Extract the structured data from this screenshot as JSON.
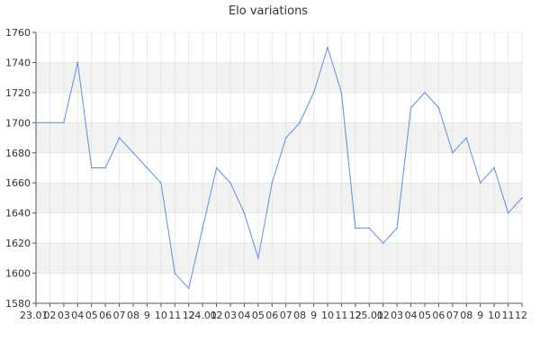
{
  "chart_data": {
    "type": "line",
    "title": "Elo variations",
    "xlabel": "",
    "ylabel": "",
    "ylim": [
      1580,
      1760
    ],
    "yticks": [
      1580,
      1600,
      1620,
      1640,
      1660,
      1680,
      1700,
      1720,
      1740,
      1760
    ],
    "grid": true,
    "colors": {
      "line": "#5b8ee6",
      "band": "#f2f2f2",
      "grid": "#dddddd",
      "axis": "#555555"
    },
    "categories": [
      "23.01",
      "02",
      "03",
      "04",
      "05",
      "06",
      "07",
      "08",
      "09",
      "10",
      "11",
      "12",
      "24.01",
      "02",
      "03",
      "04",
      "05",
      "06",
      "07",
      "08",
      "09",
      "10",
      "11",
      "12",
      "25.01",
      "02",
      "03",
      "04",
      "05",
      "06",
      "07",
      "08",
      "09",
      "10",
      "11",
      "12"
    ],
    "tick_labels": [
      "23.01",
      "02",
      "03",
      "04",
      "05",
      "06",
      "07",
      "08",
      "9",
      "10",
      "11",
      "12",
      "24.01",
      "02",
      "03",
      "04",
      "05",
      "06",
      "07",
      "08",
      "9",
      "10",
      "11",
      "12",
      "25.01",
      "02",
      "03",
      "04",
      "05",
      "06",
      "07",
      "08",
      "9",
      "10",
      "11",
      "12"
    ],
    "series": [
      {
        "values": [
          1700,
          1700,
          1700,
          1740,
          1670,
          1670,
          1690,
          1680,
          1670,
          1660,
          1600,
          1590,
          1630,
          1670,
          1660,
          1640,
          1610,
          1660,
          1690,
          1700,
          1720,
          1750,
          1720,
          1630,
          1630,
          1620,
          1630,
          1710,
          1720,
          1710,
          1680,
          1690,
          1660,
          1670,
          1640,
          1650
        ]
      }
    ]
  }
}
